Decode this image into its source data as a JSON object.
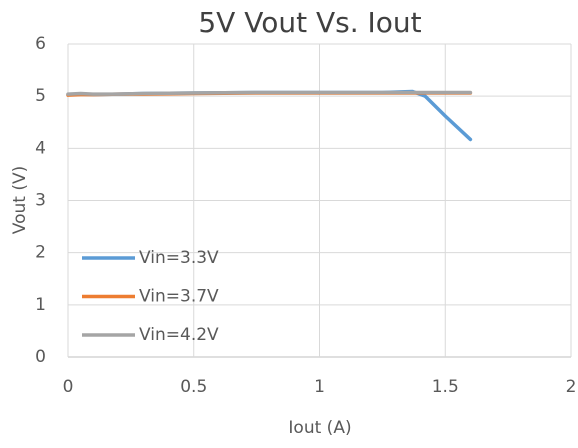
{
  "chart_data": {
    "type": "line",
    "title": "5V Vout Vs. Iout",
    "x_label": "Iout (A)",
    "y_label": "Vout (V)",
    "x": [
      0,
      0.05,
      0.1,
      0.2,
      0.3,
      0.5,
      0.75,
      1,
      1.25,
      1.37,
      1.42,
      1.5,
      1.6
    ],
    "series": [
      {
        "name": "Vin=3.3V",
        "color": "#5b9bd5",
        "values": [
          5.03,
          5.04,
          5.03,
          5.04,
          5.05,
          5.06,
          5.07,
          5.07,
          5.07,
          5.09,
          5.0,
          4.62,
          4.17
        ]
      },
      {
        "name": "Vin=3.7V",
        "color": "#ed7d31",
        "values": [
          5.02,
          5.03,
          5.03,
          5.04,
          5.04,
          5.05,
          5.06,
          5.06,
          5.06,
          5.06,
          5.06,
          5.06,
          5.06
        ]
      },
      {
        "name": "Vin=4.2V",
        "color": "#a5a5a5",
        "values": [
          5.04,
          5.05,
          5.04,
          5.04,
          5.05,
          5.06,
          5.07,
          5.07,
          5.07,
          5.07,
          5.07,
          5.07,
          5.07
        ]
      }
    ],
    "xlim": [
      0,
      2
    ],
    "xticks": [
      0,
      0.5,
      1,
      1.5,
      2
    ],
    "ylim": [
      0,
      6
    ],
    "yticks": [
      0,
      1,
      2,
      3,
      4,
      5,
      6
    ],
    "grid": true,
    "legend": "lower left"
  }
}
